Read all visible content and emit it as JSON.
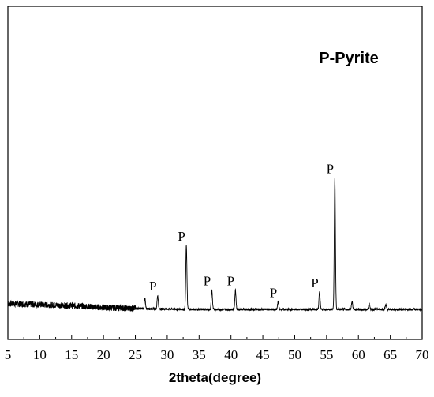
{
  "chart_data": {
    "type": "line",
    "title": "P-Pyrite",
    "xlabel": "2theta(degree)",
    "ylabel": "",
    "xlim": [
      5,
      70
    ],
    "ylim": [
      0,
      100
    ],
    "x_ticks": [
      5,
      10,
      15,
      20,
      25,
      30,
      35,
      40,
      45,
      50,
      55,
      60,
      65,
      70
    ],
    "x_tick_labels": [
      "5",
      "10",
      "15",
      "20",
      "25",
      "30",
      "35",
      "40",
      "45",
      "50",
      "55",
      "60",
      "65",
      "70"
    ],
    "y_ticks_shown": false,
    "grid": false,
    "legend": "none",
    "line_color": "#000000",
    "baseline_intensity": {
      "x": [
        5,
        10,
        15,
        20,
        25,
        30,
        35,
        40,
        45,
        50,
        55,
        60,
        65,
        70
      ],
      "y": [
        5.0,
        4.5,
        4.0,
        3.0,
        2.5,
        2.2,
        2.0,
        2.0,
        2.0,
        2.0,
        2.0,
        2.0,
        2.0,
        2.0
      ]
    },
    "peaks": [
      {
        "x": 26.5,
        "y": 5,
        "label": ""
      },
      {
        "x": 28.5,
        "y": 7,
        "label": "P"
      },
      {
        "x": 33.0,
        "y": 33,
        "label": "P"
      },
      {
        "x": 37.0,
        "y": 10,
        "label": "P"
      },
      {
        "x": 40.7,
        "y": 10,
        "label": "P"
      },
      {
        "x": 47.4,
        "y": 4,
        "label": "P"
      },
      {
        "x": 53.9,
        "y": 9,
        "label": "P"
      },
      {
        "x": 56.3,
        "y": 68,
        "label": "P"
      },
      {
        "x": 59.0,
        "y": 4,
        "label": ""
      },
      {
        "x": 61.7,
        "y": 3,
        "label": ""
      },
      {
        "x": 64.3,
        "y": 2.5,
        "label": ""
      }
    ]
  }
}
